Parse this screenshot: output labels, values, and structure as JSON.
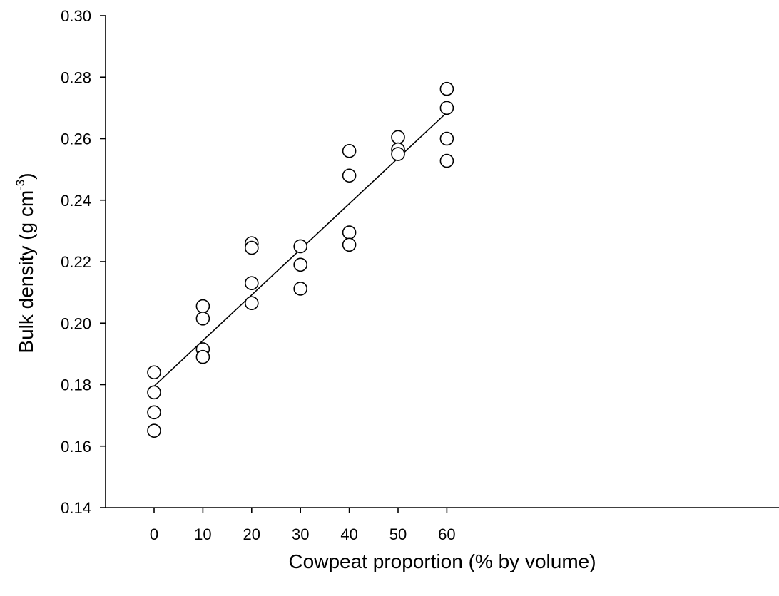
{
  "chart_data": {
    "type": "scatter",
    "title": "",
    "xlabel": "Cowpeat proportion (% by volume)",
    "ylabel": {
      "main": "Bulk density (g cm",
      "superscript": "-3",
      "close": ")"
    },
    "xlim": [
      -5,
      65
    ],
    "ylim": [
      0.14,
      0.3
    ],
    "x_ticks": [
      {
        "value": 0,
        "label": "0"
      },
      {
        "value": 10,
        "label": "10"
      },
      {
        "value": 20,
        "label": "20"
      },
      {
        "value": 30,
        "label": "30"
      },
      {
        "value": 40,
        "label": "40"
      },
      {
        "value": 50,
        "label": "50"
      },
      {
        "value": 60,
        "label": "60"
      }
    ],
    "y_ticks": [
      {
        "value": 0.14,
        "label": "0.14"
      },
      {
        "value": 0.16,
        "label": "0.16"
      },
      {
        "value": 0.18,
        "label": "0.18"
      },
      {
        "value": 0.2,
        "label": "0.20"
      },
      {
        "value": 0.22,
        "label": "0.22"
      },
      {
        "value": 0.24,
        "label": "0.24"
      },
      {
        "value": 0.26,
        "label": "0.26"
      },
      {
        "value": 0.28,
        "label": "0.28"
      },
      {
        "value": 0.3,
        "label": "0.30"
      }
    ],
    "grid": false,
    "legend": "none",
    "marker": "open-circle",
    "colors": {
      "marker_edge": "#000000",
      "marker_fill": "#ffffff",
      "line": "#000000"
    },
    "points": [
      {
        "x": 0,
        "y": 0.184
      },
      {
        "x": 0,
        "y": 0.1775
      },
      {
        "x": 0,
        "y": 0.171
      },
      {
        "x": 0,
        "y": 0.165
      },
      {
        "x": 10,
        "y": 0.2055
      },
      {
        "x": 10,
        "y": 0.2015
      },
      {
        "x": 10,
        "y": 0.1915
      },
      {
        "x": 10,
        "y": 0.189
      },
      {
        "x": 20,
        "y": 0.226
      },
      {
        "x": 20,
        "y": 0.2245
      },
      {
        "x": 20,
        "y": 0.213
      },
      {
        "x": 20,
        "y": 0.2065
      },
      {
        "x": 30,
        "y": 0.225
      },
      {
        "x": 30,
        "y": 0.219
      },
      {
        "x": 30,
        "y": 0.2112
      },
      {
        "x": 40,
        "y": 0.256
      },
      {
        "x": 40,
        "y": 0.248
      },
      {
        "x": 40,
        "y": 0.2295
      },
      {
        "x": 40,
        "y": 0.2255
      },
      {
        "x": 50,
        "y": 0.2605
      },
      {
        "x": 50,
        "y": 0.2565
      },
      {
        "x": 50,
        "y": 0.255
      },
      {
        "x": 60,
        "y": 0.2762
      },
      {
        "x": 60,
        "y": 0.27
      },
      {
        "x": 60,
        "y": 0.26
      },
      {
        "x": 60,
        "y": 0.2528
      }
    ],
    "fit_line": {
      "x": [
        0,
        60
      ],
      "y": [
        0.1795,
        0.2685
      ]
    }
  }
}
